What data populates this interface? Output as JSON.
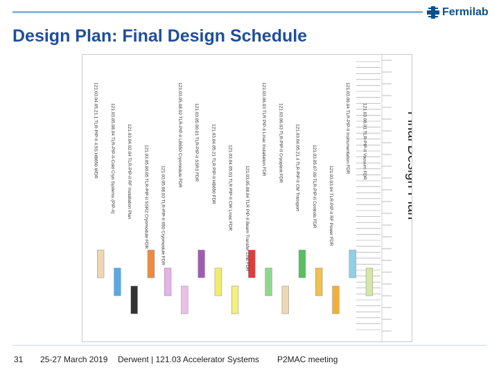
{
  "header": {
    "logo_text": "Fermilab",
    "logo_icon": "fermilab-logo-icon",
    "title": "Design Plan: Final Design Schedule"
  },
  "chart": {
    "vertical_title": "Final Design Plan",
    "tasks": [
      {
        "label": "121.03.04.05.21.1 TLR-PIP-II 4.5S HB650 WDR",
        "color": "#eed7b3"
      },
      {
        "label": "121.03.05.08.04 TLR-PIP-II-Cold Cryo Systems (PIP-II)",
        "color": "#59a9e6"
      },
      {
        "label": "121.03.04.02.04 TLR-PIP-II RF Installation Plan",
        "color": "#333333"
      },
      {
        "label": "121.03.05.00.05 TLR-PIP-II SSR2 Cryomodule FDR",
        "color": "#ee8a3f"
      },
      {
        "label": "121.03.05.08.03 TLR-PIP-II 650 Cryomodule FDR",
        "color": "#e6b3e6"
      },
      {
        "label": "121.03.05.08.02 TLR-PIP-II LB650 Cryomodule FDR",
        "color": "#e9c0e9"
      },
      {
        "label": "121.03.05.00.01 TLR-PIP-II SSR1 FDR",
        "color": "#a05cb0"
      },
      {
        "label": "121.03.04.05.21 TLR PIP-II HB650 FDR",
        "color": "#f2ee6a"
      },
      {
        "label": "121.03.04.05.01 TLR PIP-II CW Linac FDR",
        "color": "#f4f07a"
      },
      {
        "label": "121.03.05.08.04 TLR PIP-II Beam Transfer Line FDR",
        "color": "#e23b3b"
      },
      {
        "label": "121.03.06.03 TLR PIP-II Linac Installation FDR",
        "color": "#90d890"
      },
      {
        "label": "121.03.06.03 TLR-PIP-II Cryoplant FDR",
        "color": "#eed7b3"
      },
      {
        "label": "121.03.04.05.21.4 TLR-PIP-II CM Transport",
        "color": "#59c060"
      },
      {
        "label": "121.03.05.07.09 TLR-PIP-II Controls FDR",
        "color": "#f0c050"
      },
      {
        "label": "121.03.03.04 TLR-PIP-II RF Power FDR",
        "color": "#f0b038"
      },
      {
        "label": "121.03.06.04 TLR-PIP-II Instrumentation FDR",
        "color": "#8fd0e6"
      },
      {
        "label": "121.03.08.01 TLR-PIP-II Vacuum FDR",
        "color": "#d6e8a8"
      }
    ]
  },
  "footer": {
    "page_number": "31",
    "date": "25-27 March 2019",
    "author": "Derwent | 121.03 Accelerator Systems",
    "meeting": "P2MAC meeting"
  }
}
